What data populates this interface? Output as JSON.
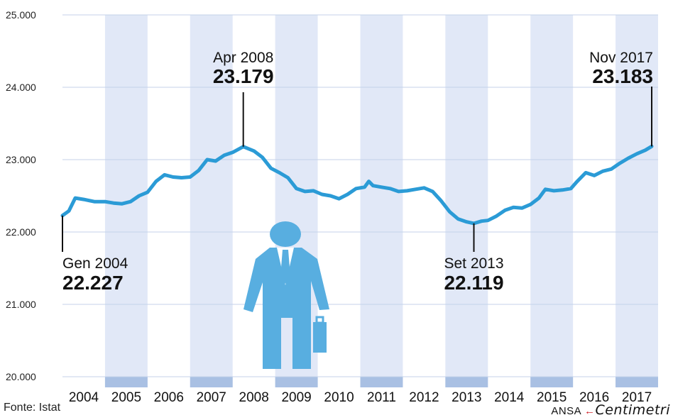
{
  "chart_data": {
    "type": "line",
    "ylim": [
      20000,
      25000
    ],
    "yticks": [
      20000,
      21000,
      22000,
      23000,
      24000,
      25000
    ],
    "ytick_labels": [
      "20.000",
      "21.000",
      "22.000",
      "23.000",
      "24.000",
      "25.000"
    ],
    "categories": [
      "2004",
      "2005",
      "2006",
      "2007",
      "2008",
      "2009",
      "2010",
      "2011",
      "2012",
      "2013",
      "2014",
      "2015",
      "2016",
      "2017"
    ],
    "shaded_years": [
      "2005",
      "2007",
      "2009",
      "2011",
      "2013",
      "2015",
      "2017"
    ],
    "series": [
      {
        "color": "#2b9bd6",
        "points": [
          [
            2004.0,
            22227
          ],
          [
            2004.15,
            22290
          ],
          [
            2004.3,
            22470
          ],
          [
            2004.5,
            22450
          ],
          [
            2004.75,
            22420
          ],
          [
            2005.0,
            22420
          ],
          [
            2005.2,
            22400
          ],
          [
            2005.4,
            22390
          ],
          [
            2005.6,
            22420
          ],
          [
            2005.8,
            22500
          ],
          [
            2006.0,
            22550
          ],
          [
            2006.2,
            22700
          ],
          [
            2006.4,
            22790
          ],
          [
            2006.6,
            22760
          ],
          [
            2006.8,
            22750
          ],
          [
            2007.0,
            22760
          ],
          [
            2007.2,
            22850
          ],
          [
            2007.4,
            23000
          ],
          [
            2007.6,
            22980
          ],
          [
            2007.8,
            23060
          ],
          [
            2008.0,
            23100
          ],
          [
            2008.25,
            23179
          ],
          [
            2008.5,
            23120
          ],
          [
            2008.7,
            23030
          ],
          [
            2008.9,
            22880
          ],
          [
            2009.1,
            22820
          ],
          [
            2009.3,
            22750
          ],
          [
            2009.5,
            22600
          ],
          [
            2009.7,
            22560
          ],
          [
            2009.9,
            22570
          ],
          [
            2010.1,
            22520
          ],
          [
            2010.3,
            22500
          ],
          [
            2010.5,
            22460
          ],
          [
            2010.7,
            22520
          ],
          [
            2010.9,
            22600
          ],
          [
            2011.1,
            22620
          ],
          [
            2011.2,
            22700
          ],
          [
            2011.3,
            22640
          ],
          [
            2011.5,
            22620
          ],
          [
            2011.7,
            22600
          ],
          [
            2011.9,
            22560
          ],
          [
            2012.1,
            22570
          ],
          [
            2012.3,
            22590
          ],
          [
            2012.5,
            22610
          ],
          [
            2012.7,
            22560
          ],
          [
            2012.9,
            22430
          ],
          [
            2013.1,
            22280
          ],
          [
            2013.3,
            22180
          ],
          [
            2013.5,
            22140
          ],
          [
            2013.67,
            22119
          ],
          [
            2013.85,
            22150
          ],
          [
            2014.0,
            22160
          ],
          [
            2014.2,
            22220
          ],
          [
            2014.4,
            22300
          ],
          [
            2014.6,
            22340
          ],
          [
            2014.8,
            22330
          ],
          [
            2015.0,
            22380
          ],
          [
            2015.2,
            22470
          ],
          [
            2015.35,
            22590
          ],
          [
            2015.55,
            22570
          ],
          [
            2015.75,
            22580
          ],
          [
            2015.95,
            22600
          ],
          [
            2016.1,
            22700
          ],
          [
            2016.3,
            22820
          ],
          [
            2016.5,
            22780
          ],
          [
            2016.7,
            22840
          ],
          [
            2016.9,
            22870
          ],
          [
            2017.1,
            22950
          ],
          [
            2017.3,
            23020
          ],
          [
            2017.5,
            23080
          ],
          [
            2017.7,
            23130
          ],
          [
            2017.85,
            23183
          ]
        ]
      }
    ],
    "annotations": [
      {
        "date": "Gen 2004",
        "value": "22.227",
        "x": 2004.0,
        "y": 22227
      },
      {
        "date": "Apr 2008",
        "value": "23.179",
        "x": 2008.25,
        "y": 23179
      },
      {
        "date": "Set 2013",
        "value": "22.119",
        "x": 2013.67,
        "y": 22119
      },
      {
        "date": "Nov 2017",
        "value": "23.183",
        "x": 2017.85,
        "y": 23183
      }
    ],
    "shading_color": "#e1e8f7",
    "shading_band_color": "#a9c0e3",
    "figure_color": "#58aee0"
  },
  "source": "Fonte: Istat",
  "credit": {
    "prefix": "ANSA",
    "brand": "Centimetri"
  }
}
